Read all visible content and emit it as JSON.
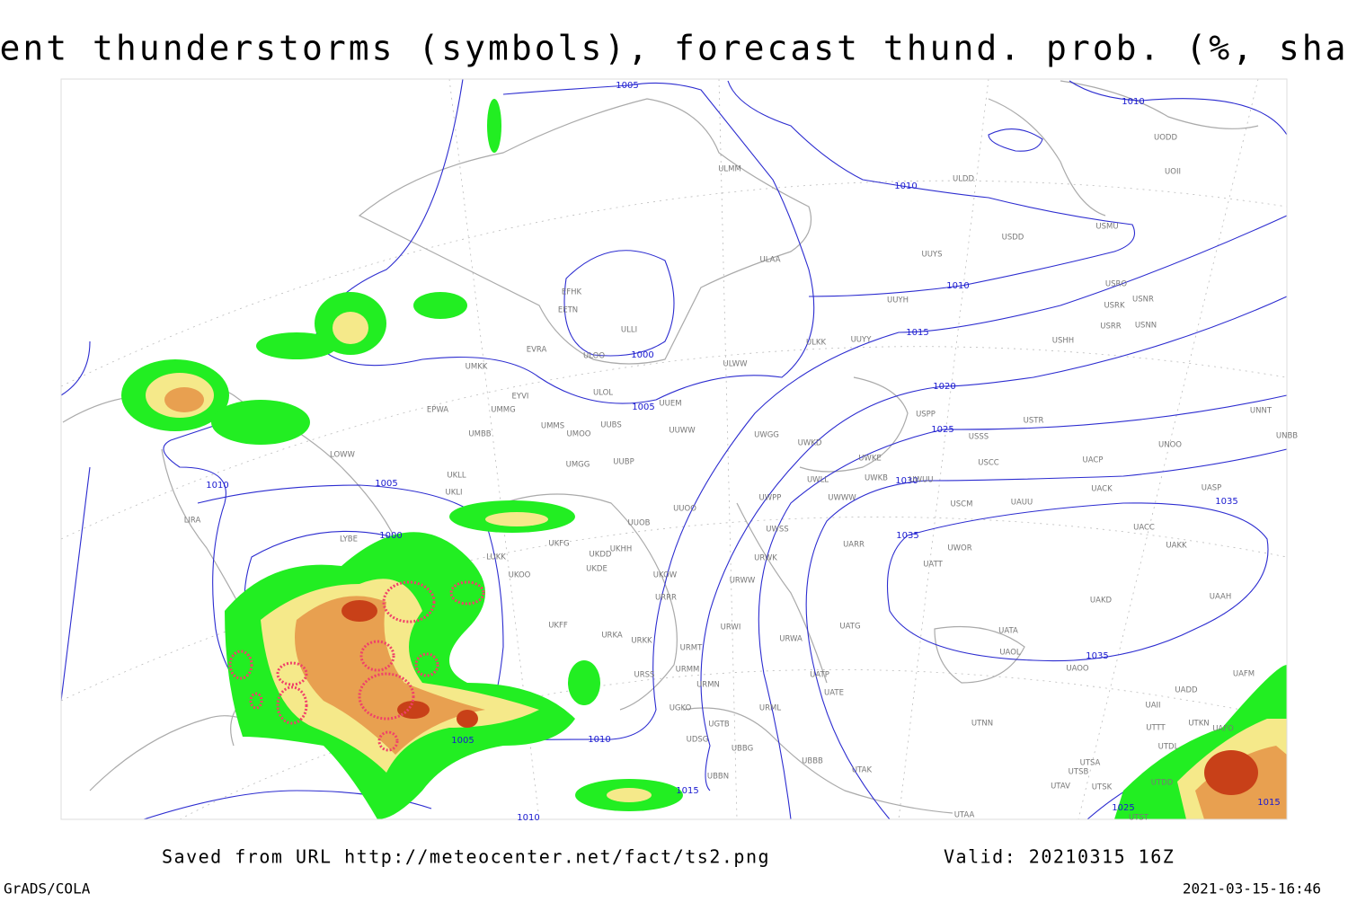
{
  "title": "Current thunderstorms (symbols), forecast thund. prob. (%, shaded)",
  "footer": {
    "saved": "Saved from URL http://meteocenter.net/fact/ts2.png",
    "valid": "Valid: 20210315 16Z",
    "software": "GrADS/COLA",
    "timestamp": "2021-03-15-16:46"
  },
  "isobar_labels": [
    1005,
    1010,
    1010,
    1010,
    1000,
    1015,
    1005,
    1020,
    1025,
    1030,
    1035,
    1035,
    1010,
    1005,
    1000,
    1005,
    1010,
    1035,
    1015,
    1010,
    1025,
    1015
  ],
  "stations": [
    "ULMM",
    "ULDD",
    "UOII",
    "UODD",
    "USMU",
    "USDD",
    "UUYS",
    "ULAA",
    "USRO",
    "USNR",
    "USRK",
    "UUYH",
    "USRR",
    "USNN",
    "USHH",
    "UUYY",
    "ULKK",
    "EFHK",
    "EETN",
    "ULLI",
    "EVRA",
    "ULOO",
    "ULWW",
    "UMKK",
    "ULOL",
    "EYVI",
    "UUEM",
    "EPWA",
    "UMMG",
    "USTR",
    "UNNT",
    "UMMS",
    "UUBS",
    "UMOO",
    "UUWW",
    "UWGG",
    "USSS",
    "UNBB",
    "UWKD",
    "UMBB",
    "USPP",
    "UWKE",
    "LOWW",
    "UMGG",
    "UUBP",
    "USCC",
    "UACP",
    "UNOO",
    "UKLL",
    "UWKB",
    "UWLL",
    "UWUU",
    "UACK",
    "UASP",
    "UKLI",
    "UWPP",
    "UWWW",
    "USCM",
    "UAUU",
    "UUOO",
    "LIRA",
    "UUOB",
    "UWSS",
    "UACC",
    "LYBE",
    "UKHH",
    "UKFG",
    "UKDD",
    "UARR",
    "UWOR",
    "UAKK",
    "LUKK",
    "UKDE",
    "UATT",
    "UKOO",
    "UKOW",
    "URWK",
    "URWW",
    "UAAH",
    "URRR",
    "UAKD",
    "UKFF",
    "URWI",
    "UATG",
    "URKA",
    "URKK",
    "URWA",
    "UATA",
    "URMT",
    "UAOL",
    "UAOO",
    "URSS",
    "URMM",
    "UATP",
    "URMN",
    "UATE",
    "UAFM",
    "UGKO",
    "URML",
    "UAII",
    "UADD",
    "UGTB",
    "UTTT",
    "UTKN",
    "UAFO",
    "UTNN",
    "UDSG",
    "UBBG",
    "UTDL",
    "UBBB",
    "UTAK",
    "UTSA",
    "UTSB",
    "UBBN",
    "UTAV",
    "UTSK",
    "UTDD",
    "UTAA",
    "UTST"
  ]
}
